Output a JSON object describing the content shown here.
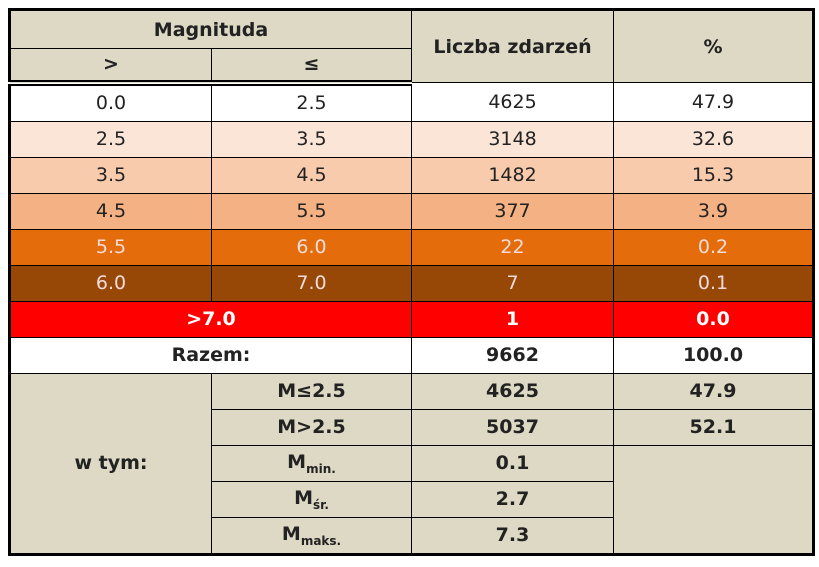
{
  "header": {
    "magnitude": "Magnituda",
    "gt": ">",
    "le": "≤",
    "count": "Liczba zdarzeń",
    "percent": "%"
  },
  "rows": [
    [
      "0.0",
      "2.5",
      "4625",
      "47.9"
    ],
    [
      "2.5",
      "3.5",
      "3148",
      "32.6"
    ],
    [
      "3.5",
      "4.5",
      "1482",
      "15.3"
    ],
    [
      "4.5",
      "5.5",
      "377",
      "3.9"
    ],
    [
      "5.5",
      "6.0",
      "22",
      "0.2"
    ],
    [
      "6.0",
      "7.0",
      "7",
      "0.1"
    ]
  ],
  "over": {
    "label": ">7.0",
    "count": "1",
    "percent": "0.0"
  },
  "total": {
    "label": "Razem:",
    "count": "9662",
    "percent": "100.0"
  },
  "breakdown": {
    "label": "w tym:",
    "items": [
      {
        "label": "M≤2.5",
        "value": "4625",
        "percent": "47.9"
      },
      {
        "label": "M>2.5",
        "value": "5037",
        "percent": "52.1"
      },
      {
        "label": {
          "main": "M",
          "sub": "min."
        },
        "value": "0.1"
      },
      {
        "label": {
          "main": "M",
          "sub": "śr."
        },
        "value": "2.7"
      },
      {
        "label": {
          "main": "M",
          "sub": "maks."
        },
        "value": "7.3"
      }
    ]
  }
}
